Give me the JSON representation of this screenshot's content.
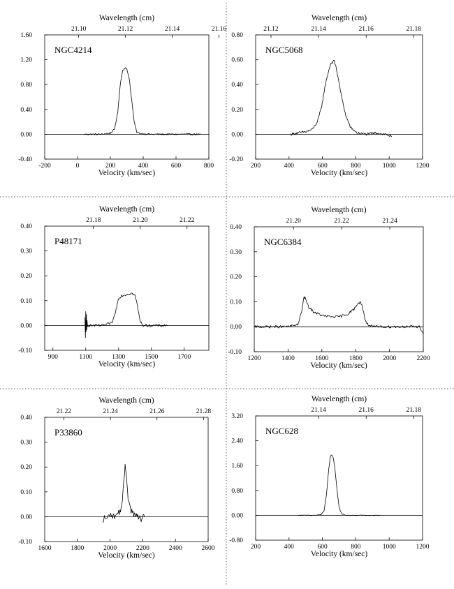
{
  "figure": {
    "x_axis_title": "Velocity (km/sec)",
    "top_axis_title": "Wavelength (cm)"
  },
  "chart_data": [
    {
      "type": "line",
      "label": "NGC4214",
      "xlabel": "Velocity (km/sec)",
      "top_xlabel": "Wavelength (cm)",
      "xlim": [
        -200,
        800
      ],
      "ylim": [
        -0.4,
        1.6
      ],
      "x_ticks": [
        -200,
        0,
        200,
        400,
        600,
        800
      ],
      "y_ticks": [
        "-0.40",
        "0.00",
        "0.40",
        "0.80",
        "1.20",
        "1.60"
      ],
      "top_ticks": [
        "21.10",
        "21.12",
        "21.14",
        "21.16"
      ],
      "top_tick_velocities": [
        7,
        292,
        577,
        862
      ],
      "zero_line": true,
      "series": [
        {
          "x": [
            40,
            100,
            150,
            200,
            225,
            245,
            260,
            275,
            290,
            300,
            315,
            330,
            345,
            360,
            380,
            450,
            550,
            650,
            750
          ],
          "y": [
            0.0,
            0.0,
            0.0,
            0.02,
            0.08,
            0.35,
            0.8,
            1.03,
            1.07,
            1.05,
            0.9,
            0.55,
            0.2,
            0.04,
            0.01,
            0.0,
            0.0,
            0.0,
            0.0
          ],
          "noise": 0.012
        }
      ]
    },
    {
      "type": "line",
      "label": "NGC5068",
      "xlabel": "Velocity (km/sec)",
      "top_xlabel": "Wavelength (cm)",
      "xlim": [
        200,
        1200
      ],
      "ylim": [
        -0.2,
        0.8
      ],
      "x_ticks": [
        200,
        400,
        600,
        800,
        1000,
        1200
      ],
      "y_ticks": [
        "-0.20",
        "0.00",
        "0.20",
        "0.40",
        "0.60",
        "0.80"
      ],
      "top_ticks": [
        "21.12",
        "21.14",
        "21.16",
        "21.18"
      ],
      "top_tick_velocities": [
        292,
        577,
        862,
        1147
      ],
      "zero_line": true,
      "series": [
        {
          "x": [
            410,
            450,
            500,
            540,
            570,
            595,
            615,
            635,
            650,
            660,
            670,
            680,
            695,
            715,
            740,
            770,
            810,
            860,
            920,
            980,
            1015
          ],
          "y": [
            0.0,
            0.01,
            0.02,
            0.04,
            0.1,
            0.22,
            0.38,
            0.5,
            0.57,
            0.58,
            0.59,
            0.55,
            0.45,
            0.3,
            0.15,
            0.05,
            0.01,
            0.0,
            0.01,
            0.0,
            -0.02
          ],
          "noise": 0.01
        }
      ]
    },
    {
      "type": "line",
      "label": "P48171",
      "xlabel": "Velocity (km/sec)",
      "top_xlabel": "Wavelength (cm)",
      "xlim": [
        850,
        1850
      ],
      "ylim": [
        -0.1,
        0.4
      ],
      "x_ticks": [
        900,
        1100,
        1300,
        1500,
        1700
      ],
      "y_ticks": [
        "-0.10",
        "0.00",
        "0.10",
        "0.20",
        "0.30",
        "0.40"
      ],
      "top_ticks": [
        "21.18",
        "21.20",
        "21.22"
      ],
      "top_tick_velocities": [
        1147,
        1432,
        1717
      ],
      "zero_line": true,
      "series": [
        {
          "x": [
            1095,
            1098,
            1100,
            1102,
            1104,
            1106,
            1108,
            1112,
            1130,
            1200,
            1260,
            1280,
            1300,
            1320,
            1350,
            1380,
            1400,
            1415,
            1430,
            1450,
            1500,
            1560,
            1600
          ],
          "y": [
            0.03,
            -0.05,
            0.06,
            -0.03,
            0.04,
            -0.02,
            0.02,
            0.0,
            0.0,
            0.0,
            0.01,
            0.05,
            0.11,
            0.12,
            0.125,
            0.13,
            0.12,
            0.08,
            0.02,
            0.0,
            0.0,
            0.0,
            0.0
          ],
          "noise": 0.005
        }
      ]
    },
    {
      "type": "line",
      "label": "NGC6384",
      "xlabel": "Velocity (km/sec)",
      "top_xlabel": "Wavelength (cm)",
      "xlim": [
        1200,
        2200
      ],
      "ylim": [
        -0.1,
        0.4
      ],
      "x_ticks": [
        1200,
        1400,
        1600,
        1800,
        2000,
        2200
      ],
      "y_ticks": [
        "-0.10",
        "0.00",
        "0.10",
        "0.20",
        "0.30",
        "0.40"
      ],
      "top_ticks": [
        "21.20",
        "21.22",
        "21.24"
      ],
      "top_tick_velocities": [
        1432,
        1717,
        2002
      ],
      "zero_line": true,
      "series": [
        {
          "x": [
            1200,
            1300,
            1400,
            1460,
            1480,
            1495,
            1505,
            1520,
            1550,
            1600,
            1650,
            1700,
            1750,
            1790,
            1810,
            1830,
            1840,
            1855,
            1870,
            1900,
            2000,
            2100,
            2180,
            2200
          ],
          "y": [
            0.0,
            0.0,
            0.0,
            0.01,
            0.06,
            0.12,
            0.11,
            0.08,
            0.06,
            0.045,
            0.04,
            0.04,
            0.05,
            0.07,
            0.09,
            0.1,
            0.08,
            0.03,
            0.01,
            0.0,
            0.0,
            0.0,
            0.0,
            -0.03
          ],
          "noise": 0.005
        }
      ]
    },
    {
      "type": "line",
      "label": "P33860",
      "xlabel": "Velocity (km/sec)",
      "top_xlabel": "Wavelength (cm)",
      "xlim": [
        1600,
        2600
      ],
      "ylim": [
        -0.1,
        0.4
      ],
      "x_ticks": [
        1600,
        1800,
        2000,
        2200,
        2400,
        2600
      ],
      "y_ticks": [
        "-0.10",
        "0.00",
        "0.10",
        "0.20",
        "0.30",
        "0.40"
      ],
      "top_ticks": [
        "21.22",
        "21.24",
        "21.26",
        "21.28"
      ],
      "top_tick_velocities": [
        1717,
        2002,
        2287,
        2572
      ],
      "zero_line": true,
      "series": [
        {
          "x": [
            1955,
            1965,
            1980,
            2000,
            2020,
            2040,
            2060,
            2075,
            2085,
            2092,
            2100,
            2110,
            2125,
            2145,
            2170,
            2190,
            2210
          ],
          "y": [
            -0.03,
            0.0,
            -0.01,
            0.01,
            0.0,
            0.01,
            0.02,
            0.06,
            0.15,
            0.2,
            0.17,
            0.08,
            0.03,
            0.01,
            0.0,
            -0.01,
            0.0
          ],
          "noise": 0.012
        }
      ]
    },
    {
      "type": "line",
      "label": "NGC628",
      "xlabel": "Velocity (km/sec)",
      "top_xlabel": "Wavelength (cm)",
      "xlim": [
        200,
        1200
      ],
      "ylim": [
        -0.8,
        3.2
      ],
      "x_ticks": [
        200,
        400,
        600,
        800,
        1000,
        1200
      ],
      "y_ticks": [
        "-0.80",
        "0.00",
        "0.80",
        "1.60",
        "2.40",
        "3.20"
      ],
      "top_ticks": [
        "21.14",
        "21.16",
        "21.18"
      ],
      "top_tick_velocities": [
        577,
        862,
        1147
      ],
      "zero_line": true,
      "series": [
        {
          "x": [
            455,
            500,
            550,
            590,
            610,
            625,
            638,
            648,
            655,
            665,
            675,
            688,
            700,
            715,
            740,
            800,
            880,
            945
          ],
          "y": [
            0.0,
            0.0,
            0.0,
            0.02,
            0.15,
            0.7,
            1.5,
            1.9,
            1.95,
            1.85,
            1.5,
            0.8,
            0.25,
            0.05,
            0.0,
            0.0,
            0.0,
            0.0
          ],
          "noise": 0.01
        }
      ]
    }
  ]
}
